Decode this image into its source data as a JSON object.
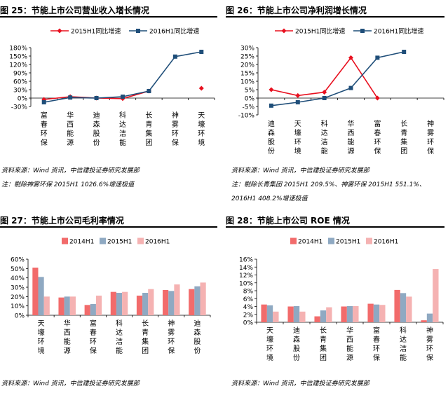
{
  "charts": {
    "c25": {
      "title": "图 25：节能上市公司营业收入增长情况",
      "source": "资料来源：Wind 资讯，中信建投证券研究发展部",
      "note": "注：剔除神雾环保 2015H1 1026.6%增速极值",
      "legend": [
        "2015H1同比增速",
        "2016H1同比增速"
      ],
      "yticks": [
        "180%",
        "150%",
        "120%",
        "90%",
        "60%",
        "30%",
        "0%",
        "-30%"
      ]
    },
    "c26": {
      "title": "图 26：节能上市公司净利润增长情况",
      "source": "资料来源：Wind 资讯，中信建投证券研究发展部",
      "note1": "注：剔除长青集团 2015H1  209.5%、神雾环保 2015H1  551.1%、",
      "note2": "2016H1 408.2%增速极值",
      "legend": [
        "2015H1同比增速",
        "2016H1同比增速"
      ],
      "yticks": [
        "30%",
        "25%",
        "20%",
        "15%",
        "10%",
        "5%",
        "0%",
        "-5%",
        "-10%"
      ]
    },
    "c27": {
      "title": "图 27：节能上市公司毛利率情况",
      "source": "资料来源：Wind 资讯，中信建投证券研究发展部",
      "legend": [
        "2014H1",
        "2015H1",
        "2016H1"
      ],
      "yticks": [
        "60%",
        "50%",
        "40%",
        "30%",
        "20%",
        "10%",
        "0%"
      ]
    },
    "c28": {
      "title": "图 28：节能上市公司 ROE 情况",
      "source": "资料来源：Wind 资讯，中信建投证券研究发展部",
      "legend": [
        "2014H1",
        "2015H1",
        "2016H1"
      ],
      "yticks": [
        "16%",
        "14%",
        "12%",
        "10%",
        "8%",
        "6%",
        "4%",
        "2%",
        "0%"
      ]
    }
  },
  "colors": {
    "red": "#e8101f",
    "navy": "#1f4e79",
    "c14": "#f26b6b",
    "c15": "#8fa9c2",
    "c16": "#f5b2b2"
  },
  "chart_data": [
    {
      "type": "line",
      "categories": [
        "富春环保",
        "华西能源",
        "迪森股份",
        "科达洁能",
        "长青集团",
        "神雾环保",
        "天壕环境"
      ],
      "ylim": [
        -30,
        180
      ],
      "series": [
        {
          "name": "2015H1同比增速",
          "values": [
            -5,
            5,
            0,
            -2,
            25,
            null,
            35
          ]
        },
        {
          "name": "2016H1同比增速",
          "values": [
            -15,
            2,
            0,
            5,
            25,
            148,
            165
          ]
        }
      ]
    },
    {
      "type": "line",
      "categories": [
        "迪森股份",
        "天壕环境",
        "科达洁能",
        "华西能源",
        "富春环保",
        "长青集团",
        "神雾环保"
      ],
      "ylim": [
        -10,
        30
      ],
      "series": [
        {
          "name": "2015H1同比增速",
          "values": [
            5,
            1.5,
            3.5,
            24,
            0,
            null,
            null
          ]
        },
        {
          "name": "2016H1同比增速",
          "values": [
            -4.5,
            -2.5,
            0,
            6,
            24,
            27.5,
            null
          ]
        }
      ]
    },
    {
      "type": "bar",
      "categories": [
        "天壕环境",
        "华西能源",
        "富春环保",
        "科达洁能",
        "长青集团",
        "神雾环保",
        "迪森股份"
      ],
      "ylim": [
        0,
        60
      ],
      "series": [
        {
          "name": "2014H1",
          "values": [
            51,
            19,
            11,
            25,
            21,
            27,
            28
          ]
        },
        {
          "name": "2015H1",
          "values": [
            41,
            20,
            12,
            24,
            24,
            26,
            31
          ]
        },
        {
          "name": "2016H1",
          "values": [
            20,
            20,
            21,
            25,
            28,
            33,
            35
          ]
        }
      ]
    },
    {
      "type": "bar",
      "categories": [
        "天壕环境",
        "迪森股份",
        "长青集团",
        "华西能源",
        "富春环保",
        "科达洁能",
        "神雾环保"
      ],
      "ylim": [
        0,
        16
      ],
      "series": [
        {
          "name": "2014H1",
          "values": [
            4.5,
            4.0,
            1.5,
            4.0,
            4.7,
            8.2,
            0.5
          ]
        },
        {
          "name": "2015H1",
          "values": [
            4.3,
            4.1,
            3.0,
            4.1,
            4.5,
            7.4,
            2.2
          ]
        },
        {
          "name": "2016H1",
          "values": [
            2.7,
            2.7,
            3.8,
            4.1,
            4.4,
            6.5,
            13.5
          ]
        }
      ]
    }
  ]
}
